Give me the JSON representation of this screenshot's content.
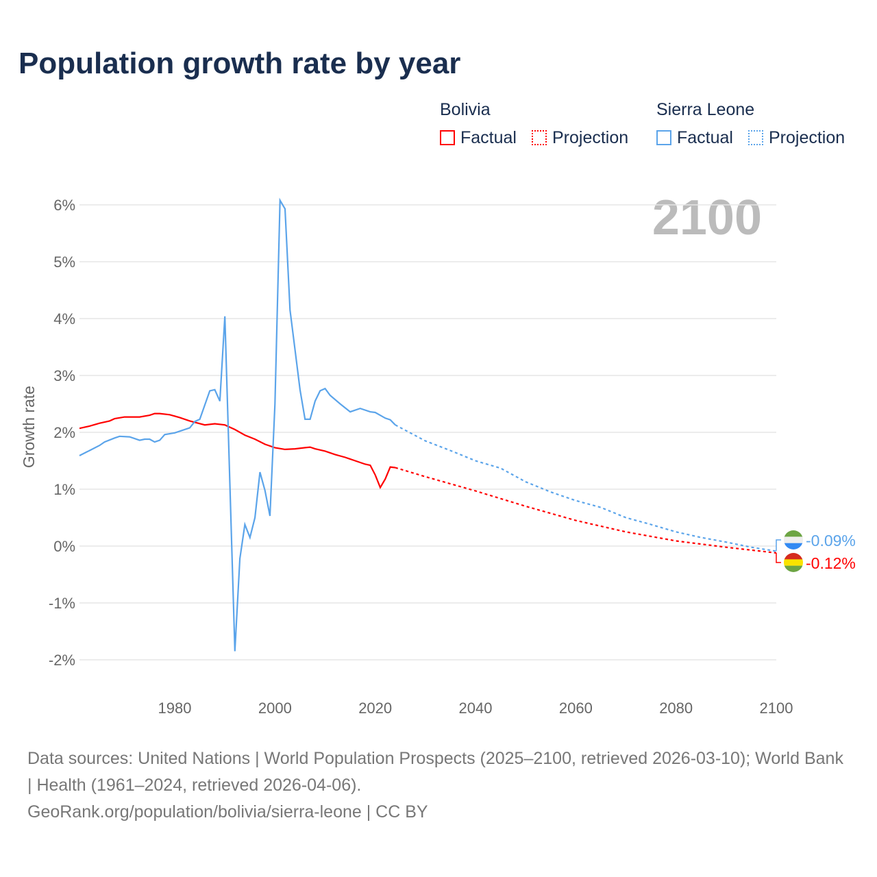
{
  "chart_data": {
    "type": "line",
    "title": "Population growth rate by year",
    "ylabel": "Growth rate",
    "xlabel": "",
    "xlim": [
      1961,
      2100
    ],
    "ylim": [
      -2.4,
      6.3
    ],
    "x_ticks": [
      "1980",
      "2000",
      "2020",
      "2040",
      "2060",
      "2080",
      "2100"
    ],
    "y_ticks": [
      {
        "v": 6,
        "l": "6%"
      },
      {
        "v": 5,
        "l": "5%"
      },
      {
        "v": 4,
        "l": "4%"
      },
      {
        "v": 3,
        "l": "3%"
      },
      {
        "v": 2,
        "l": "2%"
      },
      {
        "v": 1,
        "l": "1%"
      },
      {
        "v": 0,
        "l": "0%"
      },
      {
        "v": -1,
        "l": "-1%"
      },
      {
        "v": -2,
        "l": "-2%"
      }
    ],
    "year_label": "2100",
    "legend": {
      "placement": "top-right",
      "groups": [
        {
          "name": "Bolivia",
          "factual": "Factual",
          "projection": "Projection"
        },
        {
          "name": "Sierra Leone",
          "factual": "Factual",
          "projection": "Projection"
        }
      ]
    },
    "series": [
      {
        "name": "Bolivia",
        "color": "#ff0000",
        "end_label": "-0.12%",
        "factual": [
          [
            1961,
            2.07
          ],
          [
            1963,
            2.11
          ],
          [
            1965,
            2.16
          ],
          [
            1967,
            2.2
          ],
          [
            1968,
            2.24
          ],
          [
            1970,
            2.27
          ],
          [
            1972,
            2.27
          ],
          [
            1973,
            2.27
          ],
          [
            1975,
            2.3
          ],
          [
            1976,
            2.33
          ],
          [
            1977,
            2.33
          ],
          [
            1979,
            2.31
          ],
          [
            1981,
            2.26
          ],
          [
            1983,
            2.2
          ],
          [
            1986,
            2.13
          ],
          [
            1988,
            2.15
          ],
          [
            1990,
            2.13
          ],
          [
            1992,
            2.05
          ],
          [
            1994,
            1.95
          ],
          [
            1996,
            1.88
          ],
          [
            1998,
            1.79
          ],
          [
            2000,
            1.73
          ],
          [
            2002,
            1.7
          ],
          [
            2004,
            1.71
          ],
          [
            2006,
            1.73
          ],
          [
            2007,
            1.74
          ],
          [
            2008,
            1.71
          ],
          [
            2010,
            1.67
          ],
          [
            2012,
            1.61
          ],
          [
            2014,
            1.56
          ],
          [
            2016,
            1.5
          ],
          [
            2018,
            1.44
          ],
          [
            2019,
            1.42
          ],
          [
            2020,
            1.25
          ],
          [
            2021,
            1.03
          ],
          [
            2022,
            1.18
          ],
          [
            2023,
            1.39
          ],
          [
            2024,
            1.38
          ]
        ],
        "projection": [
          [
            2024,
            1.38
          ],
          [
            2030,
            1.22
          ],
          [
            2040,
            0.97
          ],
          [
            2050,
            0.7
          ],
          [
            2060,
            0.45
          ],
          [
            2070,
            0.25
          ],
          [
            2080,
            0.09
          ],
          [
            2090,
            -0.02
          ],
          [
            2100,
            -0.12
          ]
        ]
      },
      {
        "name": "Sierra Leone",
        "color": "#5ba4ea",
        "end_label": "-0.09%",
        "factual": [
          [
            1961,
            1.59
          ],
          [
            1963,
            1.68
          ],
          [
            1965,
            1.77
          ],
          [
            1966,
            1.83
          ],
          [
            1968,
            1.9
          ],
          [
            1969,
            1.93
          ],
          [
            1971,
            1.92
          ],
          [
            1973,
            1.86
          ],
          [
            1974,
            1.88
          ],
          [
            1975,
            1.88
          ],
          [
            1976,
            1.83
          ],
          [
            1977,
            1.86
          ],
          [
            1978,
            1.96
          ],
          [
            1980,
            1.99
          ],
          [
            1983,
            2.08
          ],
          [
            1984,
            2.19
          ],
          [
            1985,
            2.23
          ],
          [
            1987,
            2.73
          ],
          [
            1988,
            2.75
          ],
          [
            1989,
            2.55
          ],
          [
            1990,
            4.04
          ],
          [
            1992,
            -1.85
          ],
          [
            1993,
            -0.22
          ],
          [
            1994,
            0.38
          ],
          [
            1995,
            0.15
          ],
          [
            1996,
            0.5
          ],
          [
            1997,
            1.3
          ],
          [
            1998,
            0.98
          ],
          [
            1999,
            0.53
          ],
          [
            2000,
            2.5
          ],
          [
            2001,
            6.08
          ],
          [
            2002,
            5.93
          ],
          [
            2003,
            4.15
          ],
          [
            2004,
            3.45
          ],
          [
            2005,
            2.75
          ],
          [
            2006,
            2.23
          ],
          [
            2007,
            2.23
          ],
          [
            2008,
            2.55
          ],
          [
            2009,
            2.73
          ],
          [
            2010,
            2.77
          ],
          [
            2011,
            2.65
          ],
          [
            2013,
            2.5
          ],
          [
            2015,
            2.36
          ],
          [
            2017,
            2.42
          ],
          [
            2019,
            2.36
          ],
          [
            2020,
            2.35
          ],
          [
            2022,
            2.25
          ],
          [
            2023,
            2.22
          ],
          [
            2024,
            2.13
          ]
        ],
        "projection": [
          [
            2024,
            2.13
          ],
          [
            2030,
            1.85
          ],
          [
            2035,
            1.68
          ],
          [
            2040,
            1.5
          ],
          [
            2045,
            1.37
          ],
          [
            2050,
            1.13
          ],
          [
            2055,
            0.95
          ],
          [
            2060,
            0.8
          ],
          [
            2065,
            0.68
          ],
          [
            2070,
            0.5
          ],
          [
            2075,
            0.38
          ],
          [
            2080,
            0.25
          ],
          [
            2085,
            0.15
          ],
          [
            2090,
            0.07
          ],
          [
            2095,
            -0.02
          ],
          [
            2100,
            -0.09
          ]
        ]
      }
    ]
  },
  "source": {
    "line1": "Data sources: United Nations | World Population Prospects (2025–2100, retrieved 2026-03-10); World Bank | Health (1961–2024, retrieved 2026-04-06).",
    "line2": "GeoRank.org/population/bolivia/sierra-leone | CC BY"
  }
}
